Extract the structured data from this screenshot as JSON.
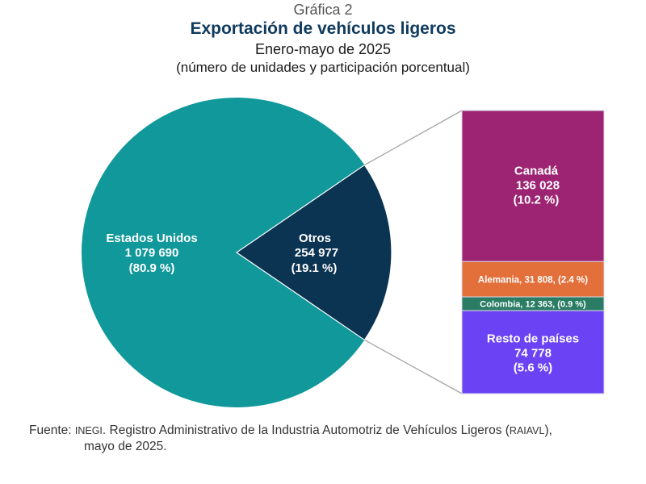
{
  "header": {
    "pretitle": "Gráfica 2",
    "title": "Exportación de vehículos ligeros",
    "subtitle": "Enero-mayo de 2025",
    "units": "(número de unidades y participación porcentual)"
  },
  "chart_data": {
    "type": "pie",
    "title": "Exportación de vehículos ligeros",
    "subtitle": "Enero-mayo de 2025",
    "units": "(número de unidades y participación porcentual)",
    "pie": {
      "slices": [
        {
          "name": "Estados Unidos",
          "value": 1079690,
          "value_label": "1 079 690",
          "percent": 80.9,
          "percent_label": "(80.9 %)",
          "color": "#11989a"
        },
        {
          "name": "Otros",
          "value": 254977,
          "value_label": "254 977",
          "percent": 19.1,
          "percent_label": "(19.1 %)",
          "color": "#0b3352"
        }
      ]
    },
    "breakdown_bar": {
      "of": "Otros",
      "segments": [
        {
          "name": "Canadá",
          "value": 136028,
          "value_label": "136 028",
          "percent": 10.2,
          "percent_label": "(10.2 %)",
          "color": "#9c2473"
        },
        {
          "name": "Alemania",
          "value": 31808,
          "value_label": "31 808",
          "percent": 2.4,
          "percent_label": "(2.4 %)",
          "inline_label": "Alemania, 31 808, (2.4 %)",
          "color": "#e36f3b"
        },
        {
          "name": "Colombia",
          "value": 12363,
          "value_label": "12 363",
          "percent": 0.9,
          "percent_label": "(0.9 %)",
          "inline_label": "Colombia,  12 363, (0.9 %)",
          "color": "#2a7d64"
        },
        {
          "name": "Resto de países",
          "value": 74778,
          "value_label": "74 778",
          "percent": 5.6,
          "percent_label": "(5.6 %)",
          "color": "#6c43f4"
        }
      ]
    },
    "connector_color": "#a6a6a6"
  },
  "source": {
    "prefix": "Fuente: ",
    "org": "INEGI",
    "text1": ". Registro Administrativo de la Industria Automotriz de Vehículos Ligeros (",
    "abbr": "RAIAVL",
    "text2": "),",
    "line2": "mayo de 2025."
  }
}
